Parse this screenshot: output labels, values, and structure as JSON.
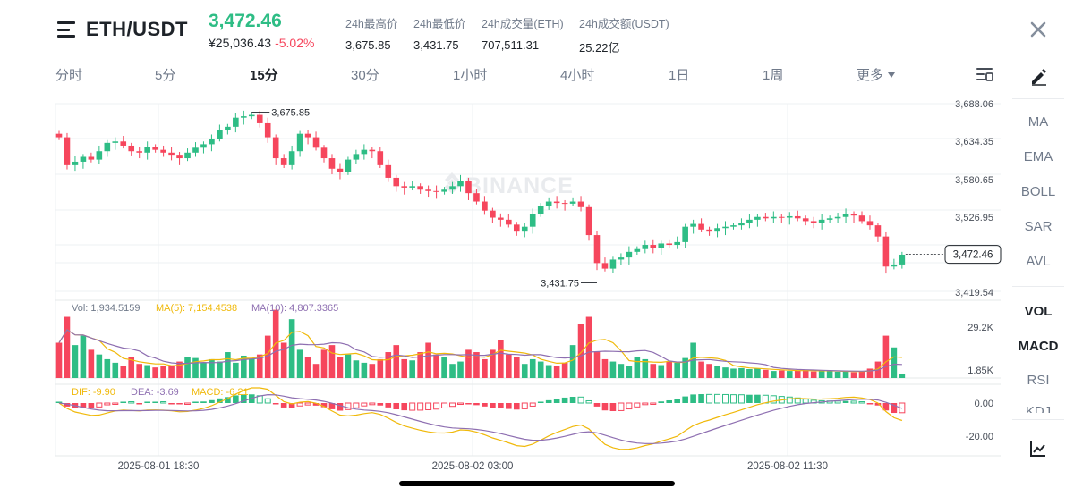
{
  "header": {
    "pair": "ETH/USDT",
    "last_price": "3,472.46",
    "cny_price": "¥25,036.43",
    "change": "-5.02%",
    "stats": [
      {
        "label": "24h最高价",
        "value": "3,675.85"
      },
      {
        "label": "24h最低价",
        "value": "3,431.75"
      },
      {
        "label": "24h成交量(ETH)",
        "value": "707,511.31"
      },
      {
        "label": "24h成交额(USDT)",
        "value": "25.22亿"
      }
    ]
  },
  "tabs": [
    "分时",
    "5分",
    "15分",
    "30分",
    "1小时",
    "4小时",
    "1日",
    "1周",
    "更多"
  ],
  "active_tab": "15分",
  "sidebar": {
    "main_indicators": [
      "MA",
      "EMA",
      "BOLL",
      "SAR",
      "AVL"
    ],
    "sub_indicators": [
      "VOL",
      "MACD",
      "RSI",
      "KDJ"
    ],
    "active_sub": [
      "VOL",
      "MACD"
    ]
  },
  "colors": {
    "up": "#2ebd85",
    "down": "#f6465d",
    "ma5": "#f0b90b",
    "ma10": "#8e6fb1",
    "watermark": "#e9ebee"
  },
  "chart_data": {
    "type": "candlestick",
    "watermark": "BINANCE",
    "price_axis": [
      "3,688.06",
      "3,634.35",
      "3,580.65",
      "3,526.95",
      "3,472.46",
      "3,419.54"
    ],
    "ylim": [
      3419.54,
      3688.06
    ],
    "high_label": "3,675.85",
    "low_label": "3,431.75",
    "current_label": "3,472.46",
    "x_labels": [
      "2025-08-01 18:30",
      "2025-08-02 03:00",
      "2025-08-02 11:30"
    ],
    "vol_legend": {
      "vol": "Vol: 1,934.5159",
      "ma5": "MA(5): 7,154.4538",
      "ma10": "MA(10): 4,807.3365"
    },
    "vol_axis": [
      "29.2K",
      "1.85K"
    ],
    "macd_legend": {
      "dif": "DIF: -9.90",
      "dea": "DEA: -3.69",
      "macd": "MACD: -6.21"
    },
    "macd_axis": [
      "0.00",
      "-20.00"
    ],
    "closes": [
      3640,
      3600,
      3605,
      3612,
      3608,
      3620,
      3632,
      3634,
      3628,
      3620,
      3618,
      3626,
      3622,
      3618,
      3615,
      3610,
      3618,
      3625,
      3630,
      3638,
      3650,
      3655,
      3668,
      3670,
      3672,
      3660,
      3640,
      3610,
      3600,
      3620,
      3645,
      3640,
      3625,
      3610,
      3595,
      3590,
      3608,
      3616,
      3622,
      3620,
      3600,
      3582,
      3570,
      3568,
      3570,
      3565,
      3563,
      3562,
      3565,
      3570,
      3578,
      3560,
      3548,
      3535,
      3525,
      3522,
      3515,
      3505,
      3512,
      3530,
      3542,
      3548,
      3546,
      3545,
      3548,
      3540,
      3500,
      3460,
      3452,
      3465,
      3468,
      3476,
      3480,
      3486,
      3482,
      3488,
      3486,
      3490,
      3512,
      3516,
      3508,
      3505,
      3510,
      3512,
      3514,
      3518,
      3522,
      3526,
      3524,
      3526,
      3525,
      3527,
      3524,
      3520,
      3518,
      3522,
      3524,
      3526,
      3530,
      3528,
      3520,
      3514,
      3498,
      3455,
      3458,
      3472
    ],
    "volumes": [
      15000,
      26000,
      14000,
      18000,
      12000,
      10000,
      8000,
      6500,
      5000,
      9000,
      6000,
      5500,
      4500,
      5000,
      5200,
      7000,
      9000,
      8500,
      6500,
      8000,
      7000,
      11000,
      6500,
      9500,
      8000,
      10000,
      18000,
      29000,
      15000,
      25000,
      12000,
      9000,
      6000,
      12000,
      14000,
      9000,
      10000,
      7500,
      6500,
      6000,
      8000,
      11000,
      14000,
      8000,
      7500,
      11000,
      15000,
      10000,
      9000,
      6000,
      7000,
      12000,
      11000,
      8000,
      12000,
      16000,
      10000,
      9000,
      6000,
      8000,
      7000,
      5500,
      5000,
      6500,
      14000,
      23000,
      26000,
      11000,
      8000,
      7000,
      6000,
      5000,
      9000,
      8000,
      6000,
      5500,
      7000,
      6500,
      8500,
      15000,
      7000,
      6000,
      5000,
      4500,
      4000,
      4200,
      3800,
      4000,
      3500,
      3000,
      3200,
      3000,
      3100,
      3500,
      2800,
      3000,
      2900,
      2700,
      2800,
      2500,
      3000,
      4000,
      7000,
      18000,
      13000,
      1900
    ]
  }
}
